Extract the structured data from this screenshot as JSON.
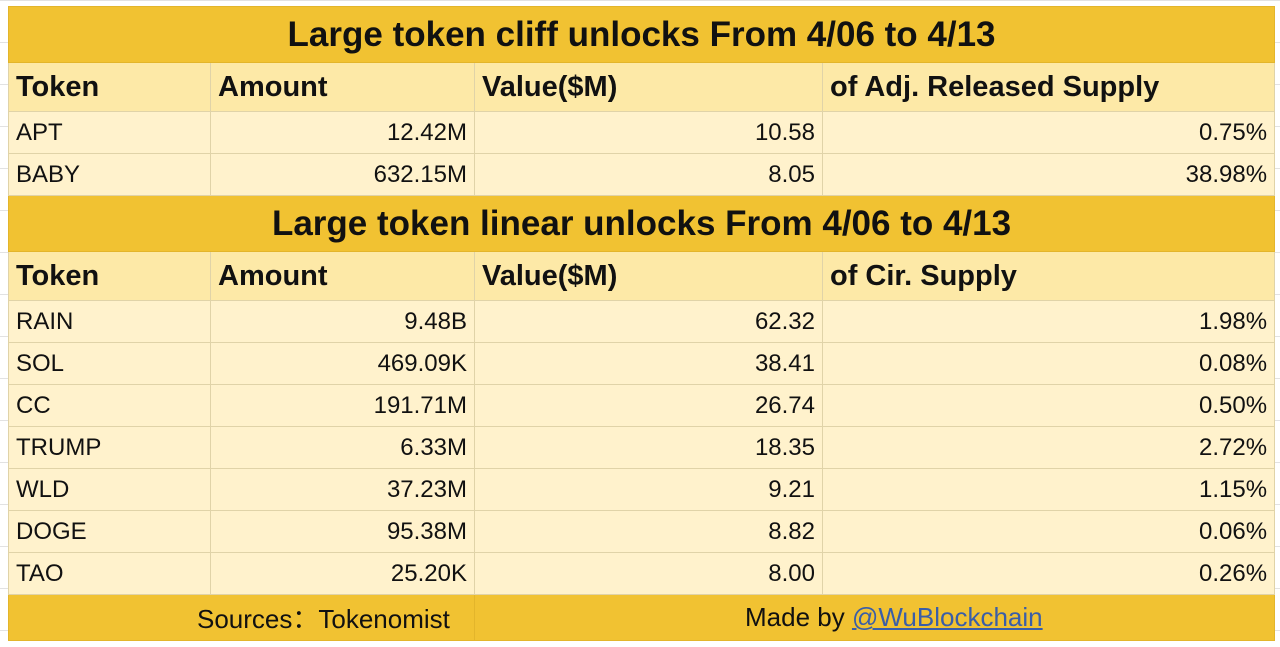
{
  "cliff": {
    "title": "Large token cliff unlocks From  4/06 to 4/13",
    "headers": [
      "Token",
      "Amount",
      "Value($M)",
      "of Adj. Released Supply"
    ],
    "rows": [
      [
        "APT",
        "12.42M",
        "10.58",
        "0.75%"
      ],
      [
        "BABY",
        "632.15M",
        "8.05",
        "38.98%"
      ]
    ]
  },
  "linear": {
    "title": "Large token linear unlocks From  4/06 to 4/13",
    "headers": [
      "Token",
      "Amount",
      "Value($M)",
      "of Cir. Supply"
    ],
    "rows": [
      [
        "RAIN",
        "9.48B",
        "62.32",
        "1.98%"
      ],
      [
        "SOL",
        "469.09K",
        "38.41",
        "0.08%"
      ],
      [
        "CC",
        "191.71M",
        "26.74",
        "0.50%"
      ],
      [
        "TRUMP",
        "6.33M",
        "18.35",
        "2.72%"
      ],
      [
        "WLD",
        "37.23M",
        "9.21",
        "1.15%"
      ],
      [
        "DOGE",
        "95.38M",
        "8.82",
        "0.06%"
      ],
      [
        "TAO",
        "25.20K",
        "8.00",
        "0.26%"
      ]
    ]
  },
  "footer": {
    "sources": "Sources：Tokenomist",
    "made_by": "Made by ",
    "handle": "@WuBlockchain"
  },
  "colors": {
    "title_bg": "#f1c232",
    "header_bg": "#fde9a7",
    "row_bg": "#fff2cc",
    "link": "#3a5ea8"
  }
}
